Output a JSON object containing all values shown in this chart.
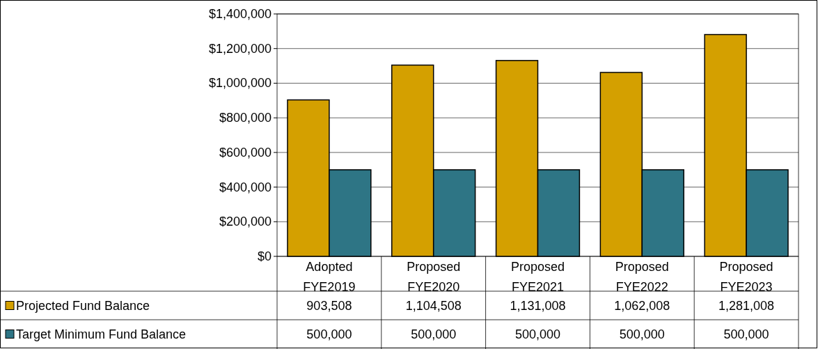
{
  "chart_data": {
    "type": "bar",
    "categories": [
      "Adopted FYE2019",
      "Proposed FYE2020",
      "Proposed FYE2021",
      "Proposed FYE2022",
      "Proposed FYE2023"
    ],
    "series": [
      {
        "name": "Projected Fund Balance",
        "color": "#d4a000",
        "values": [
          903508,
          1104508,
          1131008,
          1062008,
          1281008
        ],
        "value_labels": [
          "903,508",
          "1,104,508",
          "1,131,008",
          "1,062,008",
          "1,281,008"
        ]
      },
      {
        "name": "Target Minimum Fund Balance",
        "color": "#2e7585",
        "values": [
          500000,
          500000,
          500000,
          500000,
          500000
        ],
        "value_labels": [
          "500,000",
          "500,000",
          "500,000",
          "500,000",
          "500,000"
        ]
      }
    ],
    "ylim": [
      0,
      1400000
    ],
    "yticks": [
      {
        "value": 0,
        "label": "$0"
      },
      {
        "value": 200000,
        "label": "$200,000"
      },
      {
        "value": 400000,
        "label": "$400,000"
      },
      {
        "value": 600000,
        "label": "$600,000"
      },
      {
        "value": 800000,
        "label": "$800,000"
      },
      {
        "value": 1000000,
        "label": "$1,000,000"
      },
      {
        "value": 1200000,
        "label": "$1,200,000"
      },
      {
        "value": 1400000,
        "label": "$1,400,000"
      }
    ],
    "grid": "y",
    "legend": "bottom left"
  }
}
